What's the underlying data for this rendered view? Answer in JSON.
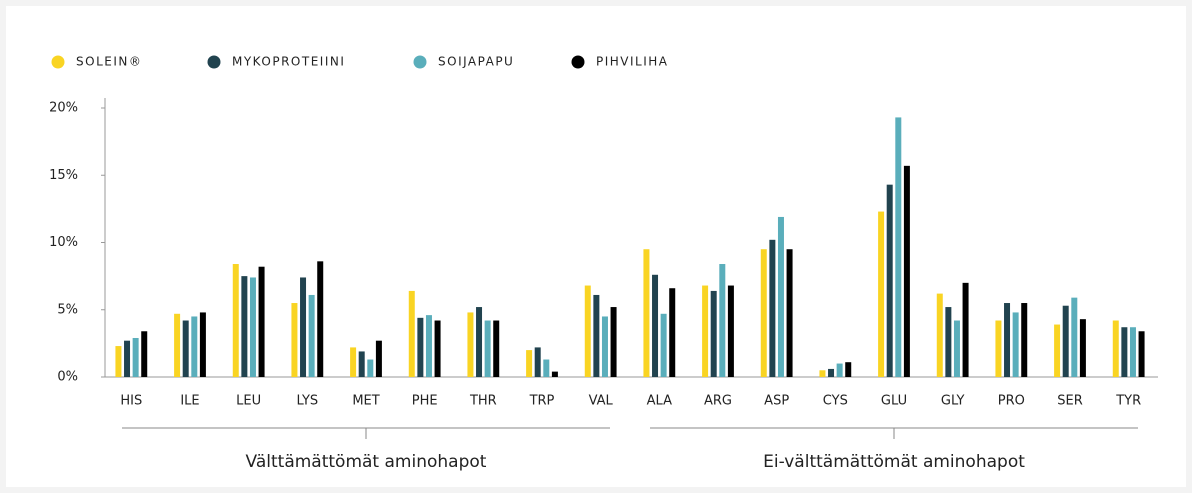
{
  "chart_data": {
    "type": "bar",
    "categories": [
      "HIS",
      "ILE",
      "LEU",
      "LYS",
      "MET",
      "PHE",
      "THR",
      "TRP",
      "VAL",
      "ALA",
      "ARG",
      "ASP",
      "CYS",
      "GLU",
      "GLY",
      "PRO",
      "SER",
      "TYR"
    ],
    "series": [
      {
        "name": "SOLEIN®",
        "color": "#f9d423",
        "values": [
          2.3,
          4.7,
          8.4,
          5.5,
          2.2,
          6.4,
          4.8,
          2.0,
          6.8,
          9.5,
          6.8,
          9.5,
          0.5,
          12.3,
          6.2,
          4.2,
          3.9,
          4.2
        ]
      },
      {
        "name": "MYKOPROTEIINI",
        "color": "#21434f",
        "values": [
          2.7,
          4.2,
          7.5,
          7.4,
          1.9,
          4.4,
          5.2,
          2.2,
          6.1,
          7.6,
          6.4,
          10.2,
          0.6,
          14.3,
          5.2,
          5.5,
          5.3,
          3.7
        ]
      },
      {
        "name": "SOIJAPAPU",
        "color": "#5aaebb",
        "values": [
          2.9,
          4.5,
          7.4,
          6.1,
          1.3,
          4.6,
          4.2,
          1.3,
          4.5,
          4.7,
          8.4,
          11.9,
          1.0,
          19.3,
          4.2,
          4.8,
          5.9,
          3.7
        ]
      },
      {
        "name": "PIHVILIHA",
        "color": "#000000",
        "values": [
          3.4,
          4.8,
          8.2,
          8.6,
          2.7,
          4.2,
          4.2,
          0.4,
          5.2,
          6.6,
          6.8,
          9.5,
          1.1,
          15.7,
          7.0,
          5.5,
          4.3,
          3.4
        ]
      }
    ],
    "category_group_labels": [
      "Välttämättömät aminohapot",
      "Ei-välttämättömät aminohapot"
    ],
    "ylim": [
      0,
      20
    ],
    "yticks": [
      {
        "value": 0,
        "label": "0%"
      },
      {
        "value": 5,
        "label": "5%"
      },
      {
        "value": 10,
        "label": "10%"
      },
      {
        "value": 15,
        "label": "15%"
      },
      {
        "value": 20,
        "label": "20%"
      }
    ],
    "grid": false,
    "legend": "top-left"
  }
}
